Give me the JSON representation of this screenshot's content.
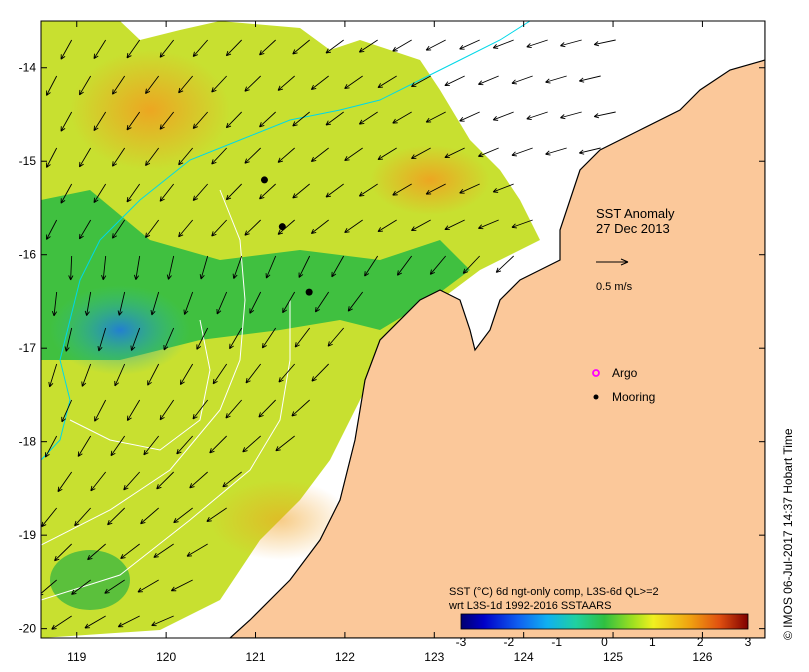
{
  "title": {
    "line1": "SST Anomaly",
    "line2": "27 Dec 2013"
  },
  "velocity_scale": {
    "label": "0.5 m/s"
  },
  "legend": {
    "argo": "Argo",
    "mooring": "Mooring",
    "argo_color": "#ff00ff",
    "mooring_color": "#000000"
  },
  "axes": {
    "x_ticks": [
      "119",
      "120",
      "121",
      "122",
      "123",
      "124",
      "125",
      "126"
    ],
    "y_ticks": [
      "-14",
      "-15",
      "-16",
      "-17",
      "-18",
      "-19",
      "-20"
    ],
    "x_range": [
      118.6,
      126.7
    ],
    "y_range": [
      -20.1,
      -13.5
    ]
  },
  "colorbar": {
    "caption_line1": "SST (°C) 6d ngt-only comp, L3S-6d QL>=2",
    "caption_line2": "wrt L3S-1d 1992-2016 SSTAARS",
    "ticks": [
      "-3",
      "-2",
      "-1",
      "0",
      "1",
      "2",
      "3"
    ],
    "range": [
      -3,
      3
    ]
  },
  "moorings": [
    {
      "lon": 121.1,
      "lat": -15.2
    },
    {
      "lon": 121.3,
      "lat": -15.7
    },
    {
      "lon": 121.6,
      "lat": -16.4
    }
  ],
  "credit": "© IMOS 06-Jul-2017 14:37 Hobart Time",
  "colors": {
    "land": "#fbc89a",
    "coast": "#000000",
    "bathymetry": "#00d8e8",
    "contours": "#ffffff"
  }
}
